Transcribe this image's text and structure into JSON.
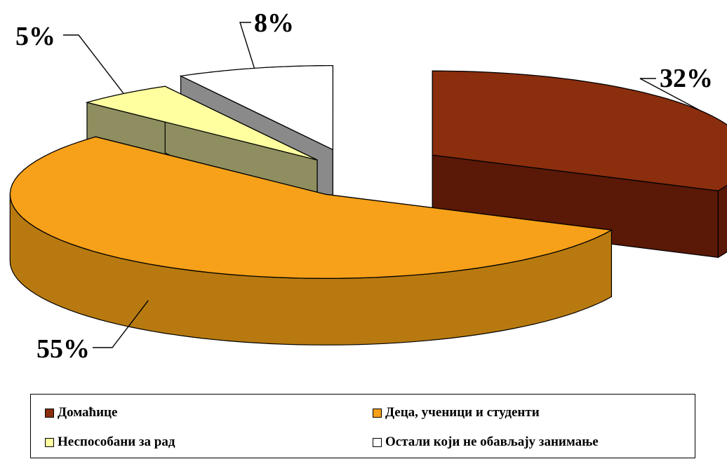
{
  "chart_data": {
    "type": "pie",
    "style": "3d-exploded",
    "categories": [
      "Домаћице",
      "Деца, ученици и студенти",
      "Неспособани за рад",
      "Остали који не обављају занимање"
    ],
    "values": [
      32,
      55,
      5,
      8
    ],
    "value_labels": [
      "32%",
      "55%",
      "5%",
      "8%"
    ],
    "unit": "%",
    "legend_position": "bottom",
    "colors": {
      "top": [
        "#8B2E0D",
        "#F7A019",
        "#FFFFA0",
        "#FFFFFF"
      ],
      "side": [
        "#5A1806",
        "#B87A10",
        "#8E8E60",
        "#8A8A8A"
      ]
    }
  }
}
